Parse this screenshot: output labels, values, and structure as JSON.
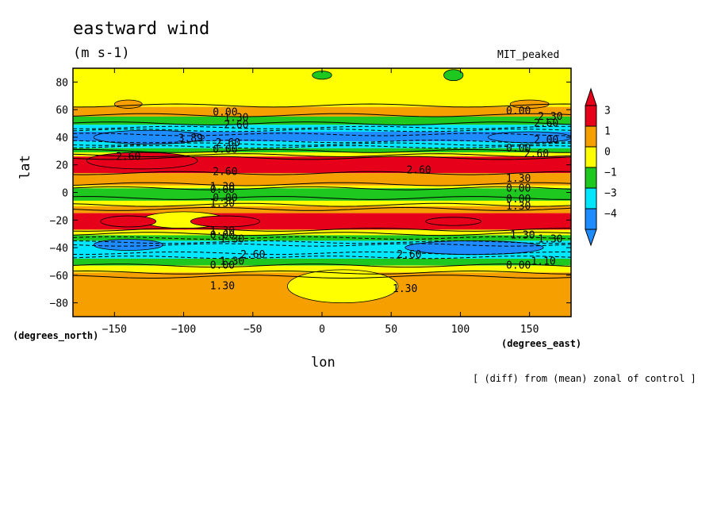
{
  "chart_data": {
    "type": "heatmap",
    "title": "eastward wind",
    "units": "(m s-1)",
    "run_label": "MIT_peaked",
    "xlabel": "lon",
    "ylabel": "lat",
    "x_units": "(degrees_east)",
    "y_units": "(degrees_north)",
    "note": "[ (diff) from (mean) zonal of control ]",
    "xlim": [
      -180,
      180
    ],
    "ylim": [
      -90,
      90
    ],
    "x_ticks": [
      -150,
      -100,
      -50,
      0,
      50,
      100,
      150
    ],
    "y_ticks": [
      -80,
      -60,
      -40,
      -20,
      0,
      20,
      40,
      60,
      80
    ],
    "colorbar": {
      "labels": [
        "3",
        "1",
        "0",
        "-1",
        "-3",
        "-4"
      ],
      "colors": [
        "#e6001a",
        "#f5a000",
        "#ffff00",
        "#1ec81e",
        "#00e6ff",
        "#1e8cff",
        "#ff0000"
      ]
    },
    "bands": [
      {
        "lat_top": 90,
        "lat_bottom": 62,
        "color": "#ffff00"
      },
      {
        "lat_top": 62,
        "lat_bottom": 55,
        "color": "#f5a000"
      },
      {
        "lat_top": 55,
        "lat_bottom": 49,
        "color": "#1ec81e"
      },
      {
        "lat_top": 49,
        "lat_bottom": 44,
        "color": "#00e6ff"
      },
      {
        "lat_top": 44,
        "lat_bottom": 37,
        "color": "#1e8cff"
      },
      {
        "lat_top": 37,
        "lat_bottom": 32,
        "color": "#00e6ff"
      },
      {
        "lat_top": 32,
        "lat_bottom": 29,
        "color": "#1ec81e"
      },
      {
        "lat_top": 29,
        "lat_bottom": 26,
        "color": "#ffff00"
      },
      {
        "lat_top": 26,
        "lat_bottom": 14,
        "color": "#e6001a"
      },
      {
        "lat_top": 14,
        "lat_bottom": 5,
        "color": "#f5a000"
      },
      {
        "lat_top": 5,
        "lat_bottom": 3,
        "color": "#ffff00"
      },
      {
        "lat_top": 3,
        "lat_bottom": -6,
        "color": "#1ec81e"
      },
      {
        "lat_top": -6,
        "lat_bottom": -10,
        "color": "#ffff00"
      },
      {
        "lat_top": -10,
        "lat_bottom": -15,
        "color": "#f5a000"
      },
      {
        "lat_top": -15,
        "lat_bottom": -27,
        "color": "#e6001a"
      },
      {
        "lat_top": -27,
        "lat_bottom": -31,
        "color": "#ffff00"
      },
      {
        "lat_top": -31,
        "lat_bottom": -35,
        "color": "#1ec81e"
      },
      {
        "lat_top": -35,
        "lat_bottom": -48,
        "color": "#00e6ff"
      },
      {
        "lat_top": -48,
        "lat_bottom": -53,
        "color": "#1ec81e"
      },
      {
        "lat_top": -53,
        "lat_bottom": -58,
        "color": "#ffff00"
      },
      {
        "lat_top": -58,
        "lat_bottom": -90,
        "color": "#f5a000"
      }
    ],
    "blobs": [
      {
        "lon": -125,
        "lat": 40,
        "dlon": 40,
        "dlat": 5,
        "color": "#1e8cff"
      },
      {
        "lon": 150,
        "lat": 40,
        "dlon": 30,
        "dlat": 4,
        "color": "#1e8cff"
      },
      {
        "lon": -130,
        "lat": 23,
        "dlon": 40,
        "dlat": 6,
        "color": "#e6001a"
      },
      {
        "lon": -100,
        "lat": -20,
        "dlon": 30,
        "dlat": 6,
        "color": "#ffff00"
      },
      {
        "lon": -140,
        "lat": -21,
        "dlon": 20,
        "dlat": 4,
        "color": "#e6001a"
      },
      {
        "lon": -70,
        "lat": -21,
        "dlon": 25,
        "dlat": 4,
        "color": "#e6001a"
      },
      {
        "lon": 95,
        "lat": -21,
        "dlon": 20,
        "dlat": 3,
        "color": "#e6001a"
      },
      {
        "lon": 110,
        "lat": -40,
        "dlon": 50,
        "dlat": 5,
        "color": "#1e8cff"
      },
      {
        "lon": -140,
        "lat": -38,
        "dlon": 25,
        "dlat": 4,
        "color": "#1e8cff"
      },
      {
        "lon": 15,
        "lat": -68,
        "dlon": 40,
        "dlat": 12,
        "color": "#ffff00"
      },
      {
        "lon": -140,
        "lat": 64,
        "dlon": 10,
        "dlat": 3,
        "color": "#f5a000"
      },
      {
        "lon": 150,
        "lat": 64,
        "dlon": 14,
        "dlat": 3,
        "color": "#f5a000"
      },
      {
        "lon": 0,
        "lat": 85,
        "dlon": 7,
        "dlat": 3,
        "color": "#1ec81e"
      },
      {
        "lon": 95,
        "lat": 85,
        "dlon": 7,
        "dlat": 4,
        "color": "#1ec81e"
      }
    ],
    "solid_contour_lats": [
      63,
      56,
      50,
      30,
      27,
      25,
      14,
      6,
      3,
      -4,
      -9,
      -12,
      -27,
      -30,
      -53,
      -58,
      -61
    ],
    "dashed_contour_lats": [
      47,
      45,
      42,
      37,
      35,
      33,
      -33,
      -36,
      -38,
      -44,
      -47
    ],
    "contour_labels": [
      {
        "lon": -70,
        "lat": 58,
        "text": "0.00"
      },
      {
        "lon": -62,
        "lat": 54,
        "text": "1.30"
      },
      {
        "lon": -62,
        "lat": 49,
        "text": "2.60"
      },
      {
        "lon": -95,
        "lat": 39,
        "text": "3.89"
      },
      {
        "lon": -68,
        "lat": 36,
        "text": "2.60"
      },
      {
        "lon": -70,
        "lat": 31,
        "text": "0.00"
      },
      {
        "lon": -140,
        "lat": 26,
        "text": "2.60"
      },
      {
        "lon": -70,
        "lat": 15,
        "text": "2.60"
      },
      {
        "lon": -72,
        "lat": 4,
        "text": "1.30"
      },
      {
        "lon": -72,
        "lat": 2,
        "text": "0.00"
      },
      {
        "lon": -70,
        "lat": -4,
        "text": "0.00"
      },
      {
        "lon": -72,
        "lat": -8,
        "text": "1.30"
      },
      {
        "lon": -72,
        "lat": -28,
        "text": "1.30"
      },
      {
        "lon": -72,
        "lat": -31,
        "text": "0.00"
      },
      {
        "lon": -65,
        "lat": -34,
        "text": "1.30"
      },
      {
        "lon": -50,
        "lat": -45,
        "text": "2.60"
      },
      {
        "lon": -65,
        "lat": -50,
        "text": "1.30"
      },
      {
        "lon": -72,
        "lat": -53,
        "text": "0.00"
      },
      {
        "lon": -72,
        "lat": -68,
        "text": "1.30"
      },
      {
        "lon": 60,
        "lat": -70,
        "text": "1.30"
      },
      {
        "lon": 70,
        "lat": 16,
        "text": "2.60"
      },
      {
        "lon": 63,
        "lat": -45,
        "text": "2.60"
      },
      {
        "lon": 142,
        "lat": 59,
        "text": "0.00"
      },
      {
        "lon": 165,
        "lat": 55,
        "text": "2.30"
      },
      {
        "lon": 162,
        "lat": 50,
        "text": "2.60"
      },
      {
        "lon": 162,
        "lat": 38,
        "text": "2.00"
      },
      {
        "lon": 142,
        "lat": 32,
        "text": "0.00"
      },
      {
        "lon": 155,
        "lat": 28,
        "text": "2.60"
      },
      {
        "lon": 142,
        "lat": 10,
        "text": "1.30"
      },
      {
        "lon": 142,
        "lat": 3,
        "text": "0.00"
      },
      {
        "lon": 142,
        "lat": -5,
        "text": "0.00"
      },
      {
        "lon": 142,
        "lat": -10,
        "text": "1.30"
      },
      {
        "lon": 145,
        "lat": -31,
        "text": "1.30"
      },
      {
        "lon": 165,
        "lat": -34,
        "text": "1.30"
      },
      {
        "lon": 160,
        "lat": -50,
        "text": "1.10"
      },
      {
        "lon": 142,
        "lat": -53,
        "text": "0.00"
      }
    ]
  }
}
